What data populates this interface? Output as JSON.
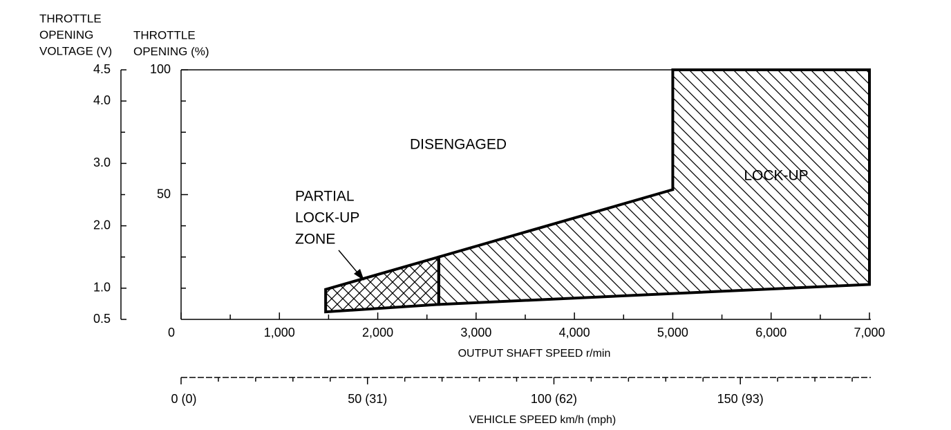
{
  "chart_data": {
    "type": "region",
    "y2_label": [
      "THROTTLE",
      "OPENING",
      "VOLTAGE (V)"
    ],
    "y_label": [
      "THROTTLE",
      "OPENING (%)"
    ],
    "x_label": "OUTPUT SHAFT SPEED r/min",
    "x2_label": "VEHICLE SPEED km/h (mph)",
    "xlim": [
      0,
      7000
    ],
    "xticks": [
      0,
      {
        "value": 1000,
        "label": "1,000"
      },
      {
        "value": 2000,
        "label": "2,000"
      },
      {
        "value": 3000,
        "label": "3,000"
      },
      {
        "value": 4000,
        "label": "4,000"
      },
      {
        "value": 5000,
        "label": "5,000"
      },
      {
        "value": 6000,
        "label": "6,000"
      },
      {
        "value": 7000,
        "label": "7,000"
      }
    ],
    "xminorticks": [
      500,
      1500,
      2500,
      3500,
      4500,
      5500,
      6500
    ],
    "ylim": [
      0,
      100
    ],
    "yticks": [
      50,
      100
    ],
    "yminorticks": [
      12.5,
      25,
      37.5,
      62.5,
      75,
      87.5
    ],
    "y2lim": [
      0.5,
      4.5
    ],
    "y2ticks": [
      0.5,
      {
        "value": 1,
        "label": "1.0"
      },
      {
        "value": 2,
        "label": "2.0"
      },
      {
        "value": 3,
        "label": "3.0"
      },
      {
        "value": 4,
        "label": "4.0"
      },
      4.5
    ],
    "y2minorticks": [
      1.5,
      2.5,
      3.5
    ],
    "x2lim": [
      0,
      185
    ],
    "x2ticks": [
      {
        "value": 0,
        "label": "0 (0)"
      },
      {
        "value": 50,
        "label": "50 (31)"
      },
      {
        "value": 100,
        "label": "100 (62)"
      },
      {
        "value": 150,
        "label": "150 (93)"
      }
    ],
    "x2minorticks": [
      10,
      20,
      30,
      40,
      60,
      70,
      80,
      90,
      110,
      120,
      130,
      140,
      160,
      170,
      180
    ],
    "regions": [
      {
        "label": [
          "PARTIAL",
          "LOCK-UP",
          "ZONE"
        ],
        "hatch": "cross",
        "x": [
          1470,
          2620,
          2620,
          1470
        ],
        "y": [
          12,
          25,
          6,
          3
        ]
      },
      {
        "label": [
          "LOCK-UP"
        ],
        "hatch": "diagonal",
        "x": [
          2620,
          5000,
          5000,
          7000,
          7000,
          2620
        ],
        "y": [
          25,
          52,
          100,
          100,
          14,
          6
        ]
      }
    ],
    "annotations": [
      "DISENGAGED"
    ]
  }
}
